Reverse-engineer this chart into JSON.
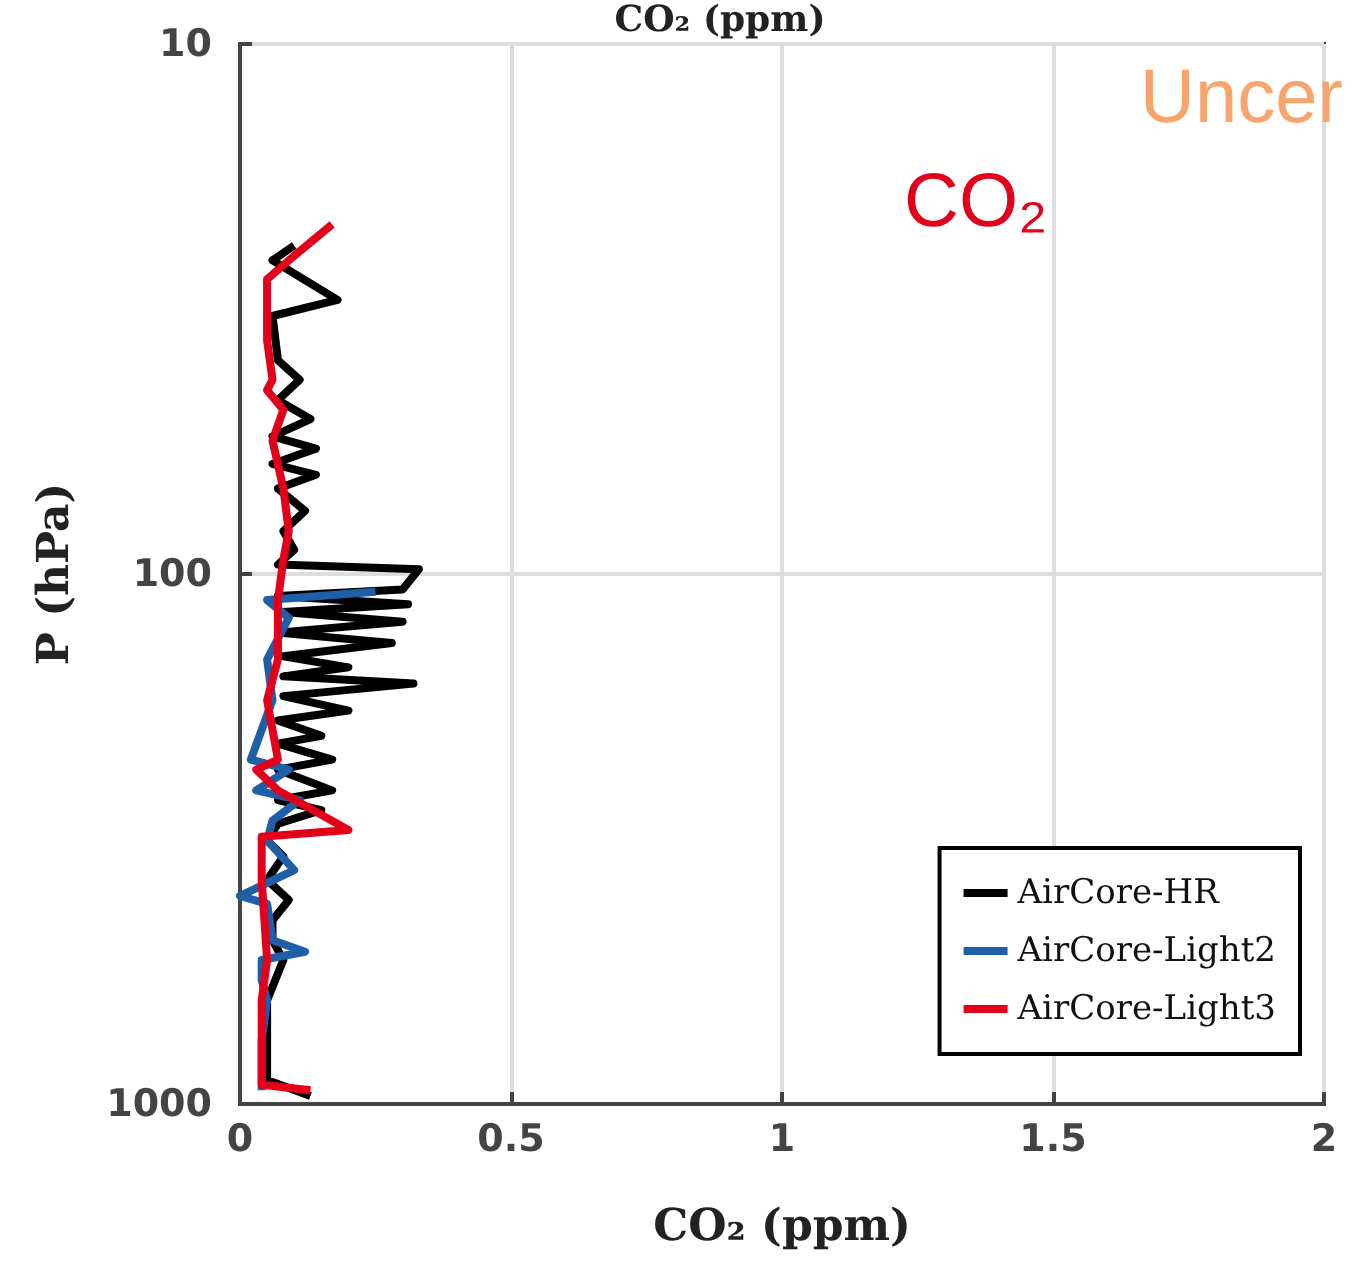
{
  "chart_data": {
    "type": "line",
    "title": "CO₂ (ppm)",
    "xlabel": "CO₂ (ppm)",
    "ylabel": "P (hPa)",
    "annotations": [
      "CO₂",
      "Uncer"
    ],
    "log": "y",
    "grid": true,
    "legend": "bottom right",
    "marker": "none",
    "line_style": "solid",
    "xlim": [
      0,
      2
    ],
    "xticks": [
      0,
      0.5,
      1,
      1.5,
      2
    ],
    "ylim": [
      1000,
      10
    ],
    "yticks": [
      10,
      100,
      1000
    ],
    "series": [
      {
        "name": "AirCore-HR",
        "color": "#000000",
        "x": [
          0.1,
          0.06,
          0.18,
          0.06,
          0.07,
          0.11,
          0.07,
          0.13,
          0.06,
          0.14,
          0.06,
          0.14,
          0.07,
          0.12,
          0.08,
          0.1,
          0.07,
          0.33,
          0.3,
          0.07,
          0.31,
          0.08,
          0.3,
          0.07,
          0.28,
          0.08,
          0.2,
          0.08,
          0.32,
          0.08,
          0.2,
          0.07,
          0.15,
          0.07,
          0.17,
          0.07,
          0.17,
          0.07,
          0.15,
          0.07,
          0.05,
          0.08,
          0.05,
          0.09,
          0.06,
          0.06,
          0.08,
          0.05,
          0.05,
          0.05,
          0.13
        ],
        "values": [
          24,
          25.6,
          30.4,
          32.6,
          39.5,
          43,
          47,
          51,
          55,
          58,
          62,
          65,
          69,
          76,
          83,
          90,
          96,
          98,
          107,
          110,
          114,
          118,
          123,
          129,
          135,
          143,
          150,
          156,
          161,
          170,
          181,
          189,
          202,
          209,
          224,
          234,
          256,
          267,
          279,
          296,
          318,
          341,
          378,
          412,
          450,
          491,
          535,
          637,
          757,
          901,
          966
        ]
      },
      {
        "name": "AirCore-Light2",
        "color": "#1f5fa8",
        "x": [
          0.25,
          0.05,
          0.09,
          0.05,
          0.06,
          0.02,
          0.09,
          0.03,
          0.11,
          0.06,
          0.05,
          0.1,
          0.0,
          0.05,
          0.06,
          0.12,
          0.04,
          0.04,
          0.05,
          0.04,
          0.04
        ],
        "values": [
          108,
          112,
          121,
          145,
          173,
          224,
          234,
          256,
          267,
          292,
          318,
          362,
          405,
          419,
          491,
          516,
          535,
          584,
          637,
          757,
          942
        ]
      },
      {
        "name": "AirCore-Light3",
        "color": "#e3001b",
        "x": [
          0.17,
          0.1,
          0.05,
          0.05,
          0.06,
          0.05,
          0.08,
          0.06,
          0.08,
          0.09,
          0.08,
          0.07,
          0.07,
          0.05,
          0.07,
          0.03,
          0.07,
          0.2,
          0.04,
          0.04,
          0.05,
          0.04,
          0.04,
          0.13
        ],
        "values": [
          21.9,
          25.1,
          27.8,
          36.2,
          43,
          45,
          49,
          56,
          69,
          83,
          94,
          112,
          145,
          173,
          224,
          234,
          256,
          304,
          313,
          378,
          535,
          637,
          920,
          942
        ]
      }
    ]
  }
}
